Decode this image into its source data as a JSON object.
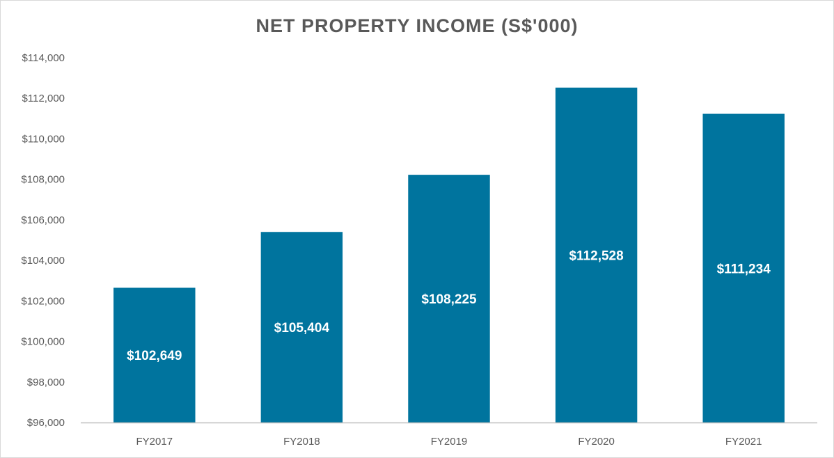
{
  "chart_data": {
    "type": "bar",
    "title": "NET PROPERTY INCOME (S$'000)",
    "categories": [
      "FY2017",
      "FY2018",
      "FY2019",
      "FY2020",
      "FY2021"
    ],
    "values": [
      102649,
      105404,
      108225,
      112528,
      111234
    ],
    "data_labels": [
      "$102,649",
      "$105,404",
      "$108,225",
      "$112,528",
      "$111,234"
    ],
    "yticks": [
      96000,
      98000,
      100000,
      102000,
      104000,
      106000,
      108000,
      110000,
      112000,
      114000
    ],
    "ytick_labels": [
      "$96,000",
      "$98,000",
      "$100,000",
      "$102,000",
      "$104,000",
      "$106,000",
      "$108,000",
      "$110,000",
      "$112,000",
      "$114,000"
    ],
    "ylim": [
      96000,
      114000
    ],
    "xlabel": "",
    "ylabel": "",
    "grid": false,
    "legend": "none",
    "bar_color": "#00749e",
    "axis_color": "#bfbfbf",
    "text_color": "#595959"
  }
}
